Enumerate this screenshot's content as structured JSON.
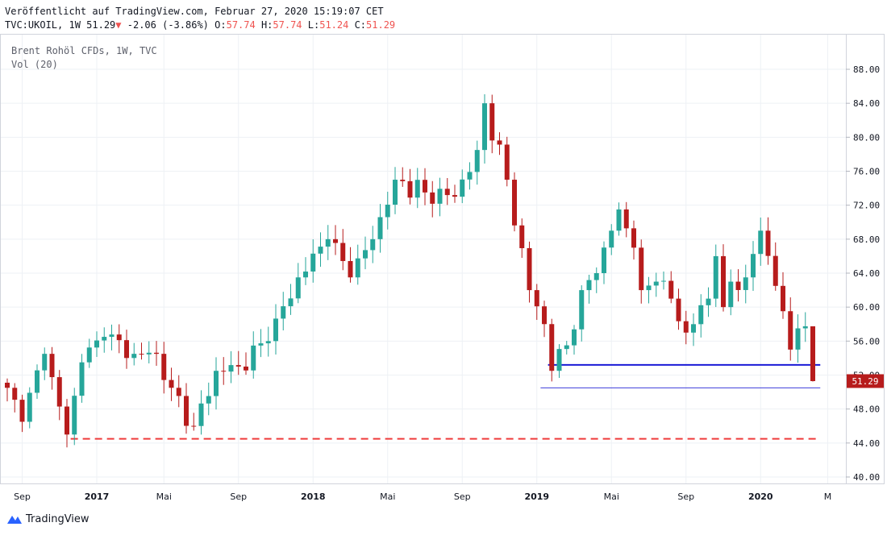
{
  "header": {
    "published": "Veröffentlicht auf TradingView.com, Februar 27, 2020 15:19:07 CET",
    "symbol": "TVC:UKOIL, 1W",
    "last": "51.29",
    "change_arrow": "▼",
    "change": "-2.06 (-3.86%)",
    "o_label": "O:",
    "o_val": "57.74",
    "h_label": "H:",
    "h_val": "57.74",
    "l_label": "L:",
    "l_val": "51.24",
    "c_label": "C:",
    "c_val": "51.29"
  },
  "legend": {
    "series_title": "Brent Rohöl CFDs, 1W, TVC",
    "volume": "Vol (20)"
  },
  "price_label": "51.29",
  "footer": {
    "brand": "TradingView"
  },
  "colors": {
    "up": "#26a69a",
    "down": "#b71c1c",
    "support_line": "#1a1ad6",
    "thin_line": "#3b3bd9",
    "dashed_line": "#ef3b3b",
    "grid": "#eef1f5",
    "price_tag": "#b71c1c"
  },
  "chart_data": {
    "type": "candlestick",
    "title": "Brent Rohöl CFDs, 1W, TVC",
    "ylim": [
      40,
      90
    ],
    "y_ticks": [
      "40.00",
      "44.00",
      "48.00",
      "52.00",
      "56.00",
      "60.00",
      "64.00",
      "68.00",
      "72.00",
      "76.00",
      "80.00",
      "84.00",
      "88.00"
    ],
    "x_ticks": [
      "Sep",
      "2017",
      "Mai",
      "Sep",
      "2018",
      "Mai",
      "Sep",
      "2019",
      "Mai",
      "Sep",
      "2020",
      "M"
    ],
    "x_range_weeks": [
      0,
      125
    ],
    "x_tick_weeks": [
      2,
      12,
      21,
      31,
      41,
      51,
      61,
      71,
      81,
      91,
      101,
      110
    ],
    "anchors": [
      [
        0,
        50.5
      ],
      [
        2,
        46.5
      ],
      [
        5,
        54.5
      ],
      [
        8,
        45.0
      ],
      [
        10,
        53.5
      ],
      [
        13,
        56.5
      ],
      [
        17,
        54.5
      ],
      [
        20,
        54.5
      ],
      [
        22,
        50.5
      ],
      [
        25,
        46.0
      ],
      [
        28,
        52.5
      ],
      [
        31,
        53.0
      ],
      [
        35,
        56.0
      ],
      [
        39,
        63.5
      ],
      [
        43,
        68.0
      ],
      [
        46,
        63.5
      ],
      [
        49,
        68.0
      ],
      [
        52,
        75.0
      ],
      [
        56,
        73.5
      ],
      [
        60,
        73.0
      ],
      [
        63,
        78.5
      ],
      [
        64,
        84.0
      ],
      [
        67,
        75.0
      ],
      [
        70,
        62.0
      ],
      [
        72,
        58.0
      ],
      [
        73,
        52.5
      ],
      [
        75,
        55.5
      ],
      [
        77,
        62.0
      ],
      [
        79,
        64.0
      ],
      [
        81,
        69.0
      ],
      [
        82,
        71.5
      ],
      [
        84,
        67.0
      ],
      [
        85,
        62.0
      ],
      [
        87,
        63.0
      ],
      [
        89,
        61.0
      ],
      [
        91,
        57.0
      ],
      [
        94,
        61.0
      ],
      [
        95,
        66.0
      ],
      [
        96,
        60.0
      ],
      [
        97,
        63.0
      ],
      [
        99,
        63.5
      ],
      [
        101,
        69.0
      ],
      [
        103,
        62.5
      ],
      [
        105,
        55.0
      ],
      [
        106,
        57.5
      ],
      [
        107,
        57.74
      ],
      [
        108,
        51.29
      ]
    ],
    "last_close": 51.29,
    "horizontal_lines": [
      {
        "name": "support",
        "price": 53.2,
        "from_week": 72.5,
        "to_week": 109,
        "style": "solid-thick"
      },
      {
        "name": "low-line",
        "price": 50.5,
        "from_week": 71.5,
        "to_week": 109,
        "style": "solid-thin"
      },
      {
        "name": "dashed-low",
        "price": 44.5,
        "from_week": 8.5,
        "to_week": 109,
        "style": "dashed"
      }
    ]
  }
}
